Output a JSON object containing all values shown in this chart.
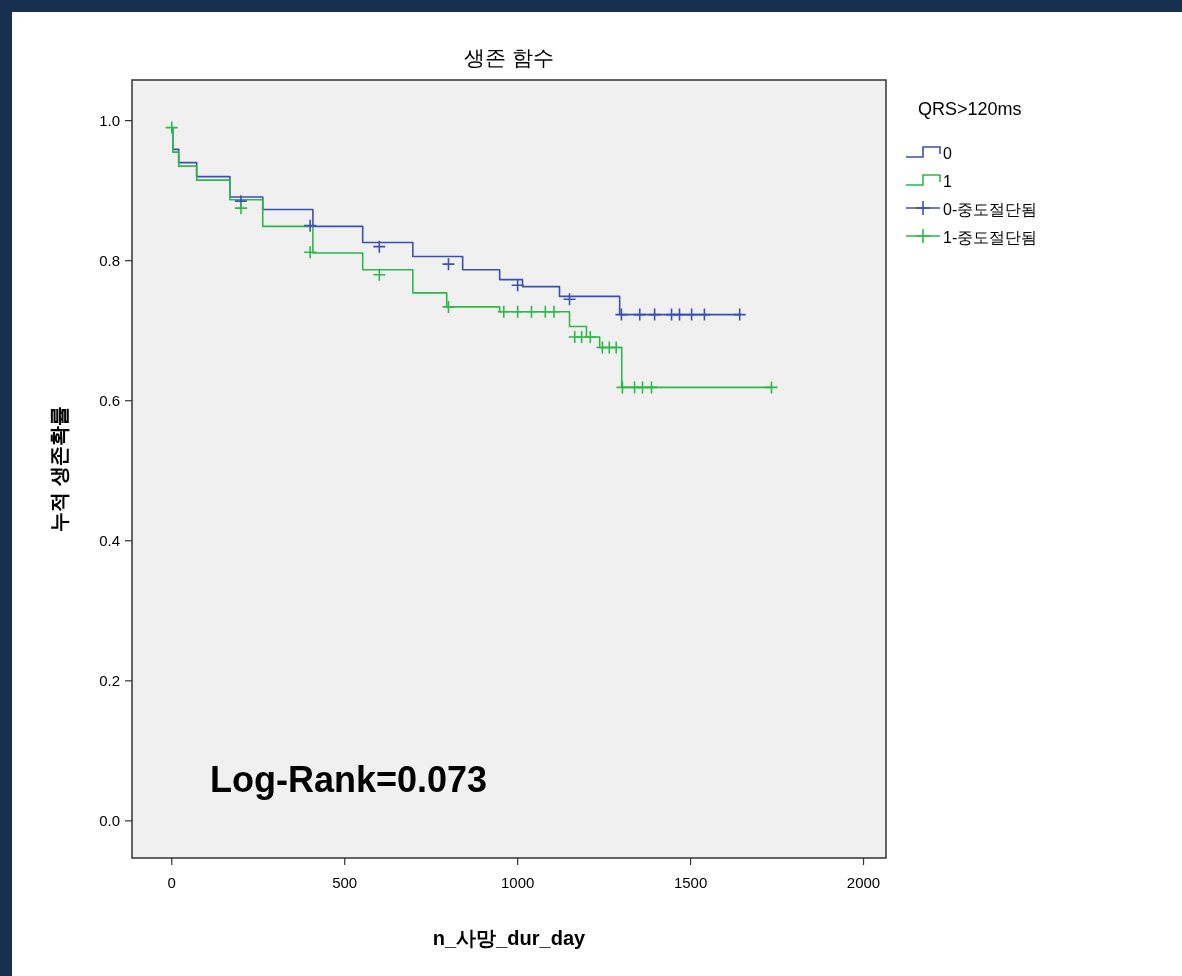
{
  "chart_data": {
    "type": "step",
    "title": "생존 함수",
    "xlabel": "n_사망_dur_day",
    "ylabel": "누적 생존확률",
    "legend_title": "QRS>120ms",
    "legend": "right",
    "annotations": [
      "Log-Rank=0.073"
    ],
    "xlim": [
      -115,
      2065
    ],
    "ylim": [
      -0.053,
      1.058
    ],
    "xticks": [
      0,
      500,
      1000,
      1500,
      2000
    ],
    "yticks": [
      {
        "value": 0,
        "label": "0.0"
      },
      {
        "value": 0.2,
        "label": "0.2"
      },
      {
        "value": 0.4,
        "label": "0.4"
      },
      {
        "value": 0.6,
        "label": "0.6"
      },
      {
        "value": 0.8,
        "label": "0.8"
      },
      {
        "value": 1,
        "label": "1.0"
      }
    ],
    "series": [
      {
        "name": "0",
        "color": "#3b4fb0",
        "x": [
          0,
          3,
          20,
          72,
          168,
          263,
          408,
          552,
          697,
          841,
          948,
          1014,
          1121,
          1295,
          1642
        ],
        "values": [
          0.99,
          0.959,
          0.94,
          0.92,
          0.891,
          0.873,
          0.849,
          0.826,
          0.806,
          0.787,
          0.773,
          0.763,
          0.749,
          0.723,
          0.723
        ]
      },
      {
        "name": "1",
        "color": "#2db84a",
        "x": [
          0,
          3,
          20,
          72,
          168,
          263,
          408,
          552,
          697,
          795,
          948,
          1130,
          1150,
          1199,
          1237,
          1301,
          1734
        ],
        "values": [
          0.99,
          0.955,
          0.935,
          0.915,
          0.887,
          0.849,
          0.811,
          0.787,
          0.754,
          0.734,
          0.727,
          0.727,
          0.706,
          0.691,
          0.676,
          0.619,
          0.619
        ]
      },
      {
        "name": "0-중도절단됨",
        "type": "scatter",
        "marker": "cross",
        "color": "#3b4fb0",
        "x": [
          200,
          400,
          600,
          800,
          1000,
          1150,
          1300,
          1353,
          1396,
          1445,
          1468,
          1503,
          1540,
          1642
        ],
        "values": [
          0.885,
          0.85,
          0.82,
          0.795,
          0.765,
          0.745,
          0.723,
          0.723,
          0.723,
          0.723,
          0.723,
          0.723,
          0.723,
          0.723
        ]
      },
      {
        "name": "1-중도절단됨",
        "type": "scatter",
        "marker": "cross",
        "color": "#2db84a",
        "x": [
          0,
          200,
          400,
          600,
          800,
          960,
          1000,
          1040,
          1080,
          1105,
          1165,
          1185,
          1210,
          1245,
          1265,
          1285,
          1303,
          1338,
          1361,
          1387,
          1734
        ],
        "values": [
          0.99,
          0.875,
          0.812,
          0.78,
          0.734,
          0.727,
          0.727,
          0.727,
          0.727,
          0.727,
          0.691,
          0.691,
          0.691,
          0.676,
          0.676,
          0.676,
          0.619,
          0.619,
          0.619,
          0.619,
          0.619
        ]
      }
    ]
  }
}
